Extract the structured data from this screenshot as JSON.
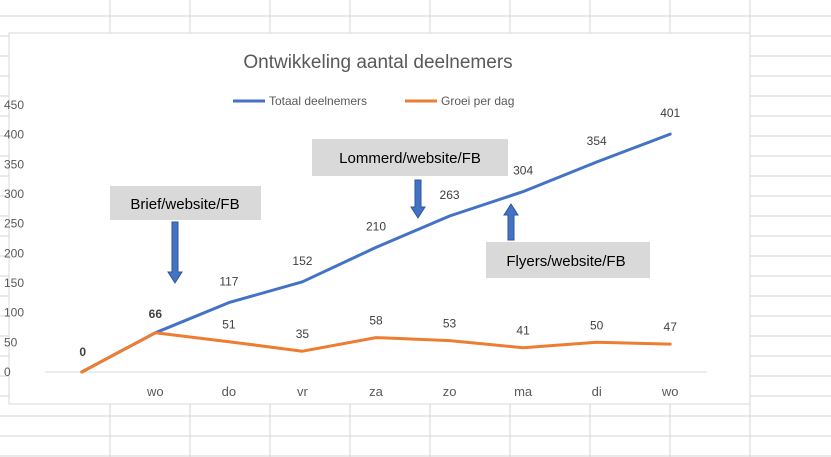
{
  "chart_data": {
    "type": "line",
    "title": "Ontwikkeling  aantal deelnemers",
    "categories": [
      "",
      "wo",
      "do",
      "vr",
      "za",
      "zo",
      "ma",
      "di",
      "wo"
    ],
    "ylim": [
      0,
      450
    ],
    "yticks": [
      0,
      50,
      100,
      150,
      200,
      250,
      300,
      350,
      400,
      450
    ],
    "grid": false,
    "legend_position": "top",
    "series": [
      {
        "name": "Totaal deelnemers",
        "color": "#4472C4",
        "values": [
          0,
          66,
          117,
          152,
          210,
          263,
          304,
          354,
          401
        ],
        "labels": [
          "0",
          "66",
          "117",
          "152",
          "210",
          "263",
          "304",
          "354",
          "401"
        ]
      },
      {
        "name": "Groei per dag",
        "color": "#ED7D31",
        "values": [
          0,
          66,
          51,
          35,
          58,
          53,
          41,
          50,
          47
        ],
        "labels": [
          "",
          "",
          "51",
          "35",
          "58",
          "53",
          "41",
          "50",
          "47"
        ]
      }
    ],
    "annotations": [
      {
        "text": "Brief/website/FB",
        "arrow": "down",
        "target_index": 1
      },
      {
        "text": "Lommerd/website/FB",
        "arrow": "down",
        "target_index": 5
      },
      {
        "text": "Flyers/website/FB",
        "arrow": "up",
        "target_index": 6
      }
    ]
  },
  "colors": {
    "annotation_box": "#D9D9D9",
    "arrow": "#4472C4",
    "sheet_grid": "#D4D4D4",
    "axis_text": "#595959",
    "title_text": "#595959"
  }
}
